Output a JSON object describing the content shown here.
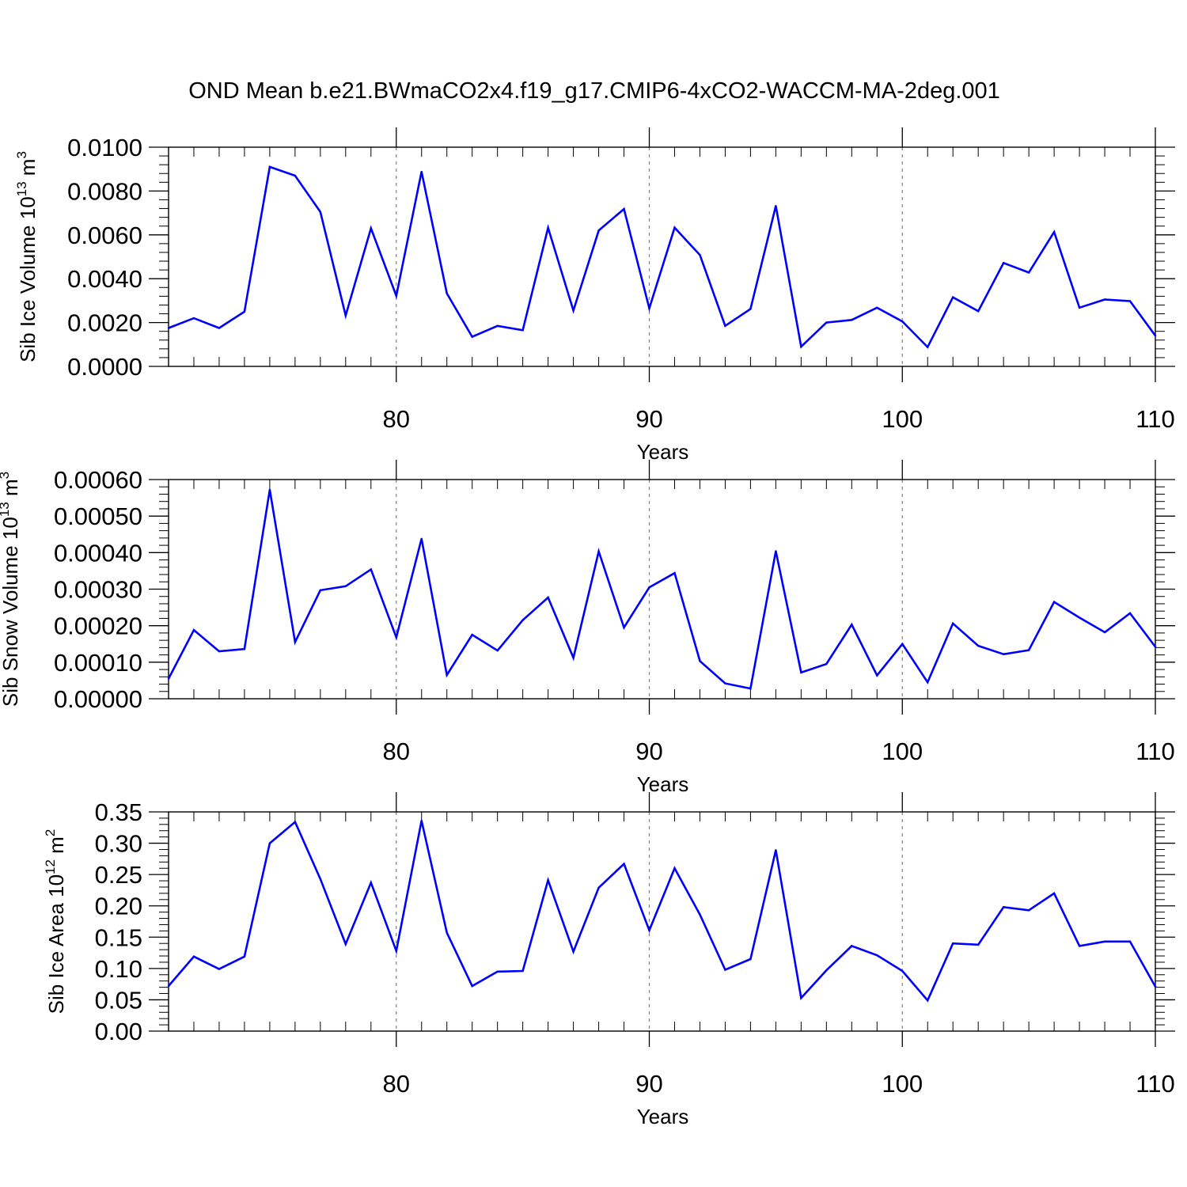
{
  "figure": {
    "title": "OND Mean b.e21.BWmaCO2x4.f19_g17.CMIP6-4xCO2-WACCM-MA-2deg.001"
  },
  "colors": {
    "line": "#0000ff",
    "axes": "#000000",
    "grid": "#808080",
    "background": "#ffffff"
  },
  "chart_data": [
    {
      "type": "line",
      "title": "",
      "xlabel": "Years",
      "ylabel": "Sib Ice Volume 10",
      "ylabel_exp": "13",
      "ylabel_unit": "m",
      "ylabel_unit_exp": "3",
      "xlim": [
        71,
        110
      ],
      "ylim": [
        0,
        0.01
      ],
      "x_ticks": [
        80,
        90,
        100,
        110
      ],
      "x_tick_labels": [
        "80",
        "90",
        "100",
        "110"
      ],
      "y_ticks": [
        0,
        0.002,
        0.004,
        0.006,
        0.008,
        0.01
      ],
      "y_tick_labels": [
        "0.0000",
        "0.0020",
        "0.0040",
        "0.0060",
        "0.0080",
        "0.0100"
      ],
      "grid": "vertical dashed at major x ticks",
      "series": [
        {
          "x": [
            71,
            72,
            73,
            74,
            75,
            76,
            77,
            78,
            79,
            80,
            81,
            82,
            83,
            84,
            85,
            86,
            87,
            88,
            89,
            90,
            91,
            92,
            93,
            94,
            95,
            96,
            97,
            98,
            99,
            100,
            101,
            102,
            103,
            104,
            105,
            106,
            107,
            108,
            109,
            110
          ],
          "values": [
            0.00175,
            0.0022,
            0.00175,
            0.0025,
            0.0091,
            0.0087,
            0.00705,
            0.00232,
            0.0063,
            0.00322,
            0.00888,
            0.00333,
            0.00135,
            0.00185,
            0.00165,
            0.00632,
            0.00255,
            0.0062,
            0.00718,
            0.00265,
            0.00633,
            0.00508,
            0.00185,
            0.00262,
            0.00732,
            0.0009,
            0.002,
            0.00212,
            0.00268,
            0.00205,
            0.00088,
            0.00315,
            0.00252,
            0.00472,
            0.00428,
            0.00613,
            0.00268,
            0.00305,
            0.00298,
            0.0014
          ]
        }
      ]
    },
    {
      "type": "line",
      "title": "",
      "xlabel": "Years",
      "ylabel": "Sib Snow Volume 10",
      "ylabel_exp": "13",
      "ylabel_unit": "m",
      "ylabel_unit_exp": "3",
      "xlim": [
        71,
        110
      ],
      "ylim": [
        0,
        0.0006
      ],
      "x_ticks": [
        80,
        90,
        100,
        110
      ],
      "x_tick_labels": [
        "80",
        "90",
        "100",
        "110"
      ],
      "y_ticks": [
        0,
        0.0001,
        0.0002,
        0.0003,
        0.0004,
        0.0005,
        0.0006
      ],
      "y_tick_labels": [
        "0.00000",
        "0.00010",
        "0.00020",
        "0.00030",
        "0.00040",
        "0.00050",
        "0.00060"
      ],
      "grid": "vertical dashed at major x ticks",
      "series": [
        {
          "x": [
            71,
            72,
            73,
            74,
            75,
            76,
            77,
            78,
            79,
            80,
            81,
            82,
            83,
            84,
            85,
            86,
            87,
            88,
            89,
            90,
            91,
            92,
            93,
            94,
            95,
            96,
            97,
            98,
            99,
            100,
            101,
            102,
            103,
            104,
            105,
            106,
            107,
            108,
            109,
            110
          ],
          "values": [
            5.5e-05,
            0.000188,
            0.00013,
            0.000136,
            0.000572,
            0.000155,
            0.000297,
            0.000308,
            0.000354,
            0.000168,
            0.000438,
            6.5e-05,
            0.000175,
            0.000132,
            0.000215,
            0.000277,
            0.000112,
            0.000403,
            0.000195,
            0.000305,
            0.000344,
            0.000103,
            4.2e-05,
            2.8e-05,
            0.000404,
            7.2e-05,
            9.5e-05,
            0.000203,
            6.4e-05,
            0.00015,
            4.5e-05,
            0.000206,
            0.000145,
            0.000122,
            0.000133,
            0.000265,
            0.000222,
            0.000182,
            0.000234,
            0.000142
          ]
        }
      ]
    },
    {
      "type": "line",
      "title": "",
      "xlabel": "Years",
      "ylabel": "Sib Ice Area 10",
      "ylabel_exp": "12",
      "ylabel_unit": "m",
      "ylabel_unit_exp": "2",
      "xlim": [
        71,
        110
      ],
      "ylim": [
        0,
        0.35
      ],
      "x_ticks": [
        80,
        90,
        100,
        110
      ],
      "x_tick_labels": [
        "80",
        "90",
        "100",
        "110"
      ],
      "y_ticks": [
        0,
        0.05,
        0.1,
        0.15,
        0.2,
        0.25,
        0.3,
        0.35
      ],
      "y_tick_labels": [
        "0.00",
        "0.05",
        "0.10",
        "0.15",
        "0.20",
        "0.25",
        "0.30",
        "0.35"
      ],
      "grid": "vertical dashed at major x ticks",
      "series": [
        {
          "x": [
            71,
            72,
            73,
            74,
            75,
            76,
            77,
            78,
            79,
            80,
            81,
            82,
            83,
            84,
            85,
            86,
            87,
            88,
            89,
            90,
            91,
            92,
            93,
            94,
            95,
            96,
            97,
            98,
            99,
            100,
            101,
            102,
            103,
            104,
            105,
            106,
            107,
            108,
            109,
            110
          ],
          "values": [
            0.072,
            0.119,
            0.099,
            0.119,
            0.3,
            0.334,
            0.243,
            0.139,
            0.237,
            0.128,
            0.336,
            0.157,
            0.072,
            0.095,
            0.096,
            0.241,
            0.127,
            0.229,
            0.267,
            0.161,
            0.26,
            0.186,
            0.098,
            0.115,
            0.289,
            0.053,
            0.097,
            0.136,
            0.121,
            0.096,
            0.049,
            0.14,
            0.138,
            0.198,
            0.193,
            0.22,
            0.136,
            0.143,
            0.143,
            0.071
          ]
        }
      ]
    }
  ]
}
